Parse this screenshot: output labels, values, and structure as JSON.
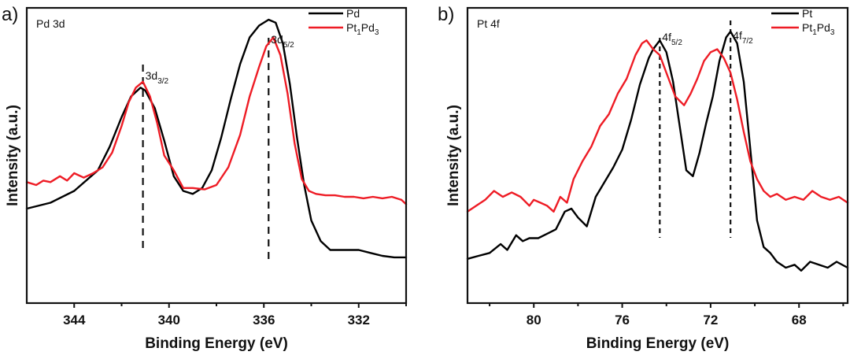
{
  "chart_data": [
    {
      "type": "line",
      "panel": "a)",
      "title": "Pd 3d",
      "xlabel": "Binding Energy (eV)",
      "ylabel": "Intensity (a.u.)",
      "xlim": [
        346,
        330
      ],
      "ylim": [
        0,
        100
      ],
      "x_reversed": true,
      "xticks": [
        344,
        340,
        336,
        332
      ],
      "xtick_labels": [
        "344",
        "340",
        "336",
        "332"
      ],
      "minor_xticks": [
        342,
        338,
        334,
        330
      ],
      "grid": false,
      "legend_position": "top-right",
      "reference_lines": [
        {
          "x": 341.1,
          "label": "3d",
          "sub": "3/2"
        },
        {
          "x": 335.8,
          "label": "3d",
          "sub": "5/2"
        }
      ],
      "series": [
        {
          "name": "Pd",
          "name_main": "Pd",
          "name_parts": [],
          "color": "#000000",
          "x": [
            346,
            345,
            344,
            343,
            342.5,
            342,
            341.6,
            341.2,
            341.0,
            340.6,
            340.2,
            339.8,
            339.4,
            339.0,
            338.6,
            338.2,
            337.8,
            337.4,
            337.0,
            336.6,
            336.2,
            335.8,
            335.5,
            335.2,
            334.9,
            334.6,
            334.3,
            334.0,
            333.6,
            333.2,
            332.5,
            332.0,
            331.5,
            331.0,
            330.5,
            330.0
          ],
          "values": [
            32,
            34,
            38,
            45,
            53,
            63,
            70,
            73,
            72,
            66,
            55,
            43,
            38,
            37,
            39,
            45,
            56,
            69,
            81,
            90,
            94,
            96,
            95,
            88,
            74,
            56,
            40,
            28,
            21,
            18,
            18,
            18,
            17,
            16,
            15.5,
            15.5
          ]
        },
        {
          "name": "Pt1Pd3",
          "name_main": "Pt",
          "name_parts": [
            [
              "1",
              "Pd"
            ],
            [
              "3",
              ""
            ]
          ],
          "color": "#ee1c25",
          "x": [
            346,
            345.6,
            345.3,
            345.0,
            344.6,
            344.3,
            344.0,
            343.6,
            343.2,
            342.8,
            342.4,
            342.0,
            341.7,
            341.4,
            341.1,
            340.8,
            340.5,
            340.2,
            339.8,
            339.4,
            339.0,
            338.5,
            338.0,
            337.5,
            337.0,
            336.6,
            336.2,
            335.9,
            335.6,
            335.3,
            335.0,
            334.7,
            334.4,
            334.1,
            333.8,
            333.4,
            333.0,
            332.6,
            332.2,
            331.8,
            331.4,
            331.0,
            330.6,
            330.2,
            330.0
          ],
          "values": [
            41,
            40,
            41.5,
            41,
            43,
            41.5,
            44,
            42.5,
            44,
            46,
            51,
            60,
            68,
            73,
            75,
            70,
            61,
            50,
            45,
            39,
            39,
            38.5,
            40,
            46,
            57,
            70,
            80,
            87,
            90,
            84,
            71,
            54,
            42,
            38,
            37,
            36.5,
            36.5,
            36,
            36,
            35.5,
            36,
            35.5,
            36,
            35,
            33.5
          ]
        }
      ]
    },
    {
      "type": "line",
      "panel": "b)",
      "title": "Pt 4f",
      "xlabel": "Binding Energy (eV)",
      "ylabel": "Intensity (a.u.)",
      "xlim": [
        83,
        65.8
      ],
      "ylim": [
        0,
        100
      ],
      "x_reversed": true,
      "xticks": [
        80,
        76,
        72,
        68
      ],
      "xtick_labels": [
        "80",
        "76",
        "72",
        "68"
      ],
      "minor_xticks": [
        82,
        78,
        74,
        70,
        66
      ],
      "grid": false,
      "legend_position": "top-right",
      "reference_lines": [
        {
          "x": 74.3,
          "label": "4f",
          "sub": "5/2"
        },
        {
          "x": 71.1,
          "label": "4f",
          "sub": "7/2"
        }
      ],
      "series": [
        {
          "name": "Pt",
          "name_main": "Pt",
          "name_parts": [],
          "color": "#000000",
          "x": [
            83,
            82.5,
            82.0,
            81.5,
            81.2,
            80.8,
            80.5,
            80.2,
            79.8,
            79.4,
            79.0,
            78.6,
            78.3,
            78.0,
            77.6,
            77.2,
            76.8,
            76.4,
            76.0,
            75.6,
            75.2,
            74.8,
            74.6,
            74.3,
            74.0,
            73.7,
            73.4,
            73.1,
            72.8,
            72.5,
            72.2,
            71.9,
            71.6,
            71.3,
            71.1,
            70.8,
            70.5,
            70.2,
            69.9,
            69.6,
            69.3,
            69.0,
            68.6,
            68.2,
            67.9,
            67.5,
            67.1,
            66.7,
            66.3,
            65.8
          ],
          "values": [
            15,
            16,
            17,
            20,
            18,
            23,
            21,
            22,
            22,
            23.5,
            25,
            31,
            32,
            29,
            26,
            36,
            41,
            46,
            52,
            62,
            74,
            83,
            86,
            89,
            85,
            75,
            60,
            45,
            43,
            51,
            61,
            70,
            82,
            90,
            92,
            88,
            75,
            52,
            28,
            19,
            17,
            14,
            12,
            13,
            11,
            14,
            13,
            12,
            14,
            12
          ]
        },
        {
          "name": "Pt1Pd3",
          "name_main": "Pt",
          "name_parts": [
            [
              "1",
              "Pd"
            ],
            [
              "3",
              ""
            ]
          ],
          "color": "#ee1c25",
          "x": [
            83,
            82.6,
            82.2,
            81.8,
            81.4,
            81.0,
            80.6,
            80.2,
            80.0,
            79.7,
            79.4,
            79.1,
            78.8,
            78.5,
            78.2,
            77.8,
            77.4,
            77.0,
            76.6,
            76.2,
            75.8,
            75.4,
            75.1,
            74.9,
            74.6,
            74.3,
            74.0,
            73.6,
            73.2,
            72.9,
            72.6,
            72.3,
            72.0,
            71.7,
            71.4,
            71.1,
            70.8,
            70.5,
            70.2,
            69.9,
            69.6,
            69.3,
            69.0,
            68.6,
            68.2,
            67.8,
            67.4,
            67.0,
            66.6,
            66.2,
            65.8
          ],
          "values": [
            31,
            33,
            35,
            38,
            36,
            37.5,
            36,
            33,
            35,
            34,
            33,
            31,
            36,
            34,
            42,
            48,
            53,
            60,
            64,
            71,
            76,
            84,
            88,
            89,
            86,
            84,
            78,
            70,
            67,
            71,
            76,
            82,
            85,
            86,
            83,
            78,
            69,
            58,
            48,
            42,
            38,
            36,
            37,
            35,
            36,
            35,
            38,
            36,
            35,
            36,
            34
          ]
        }
      ]
    }
  ]
}
